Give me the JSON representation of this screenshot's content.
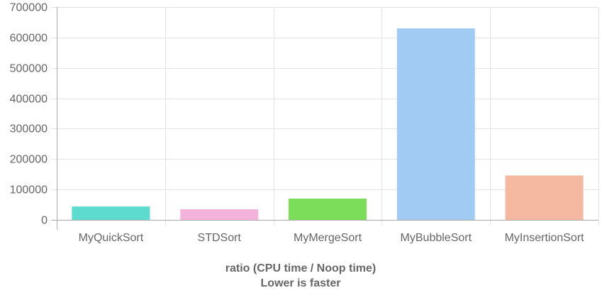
{
  "chart_data": {
    "type": "bar",
    "categories": [
      "MyQuickSort",
      "STDSort",
      "MyMergeSort",
      "MyBubbleSort",
      "MyInsertionSort"
    ],
    "values": [
      44000,
      35000,
      70000,
      630000,
      146000
    ],
    "colors": [
      "#5edbcf",
      "#f4b3da",
      "#7cdd5b",
      "#a2cbf4",
      "#f5b8a0"
    ],
    "xlabel": [
      "ratio (CPU time / Noop time)",
      "Lower is faster"
    ],
    "ylabel": "",
    "ylim": [
      0,
      700000
    ],
    "yticks": [
      "0",
      "100000",
      "200000",
      "300000",
      "400000",
      "500000",
      "600000",
      "700000"
    ],
    "grid": true,
    "legend": "none"
  }
}
